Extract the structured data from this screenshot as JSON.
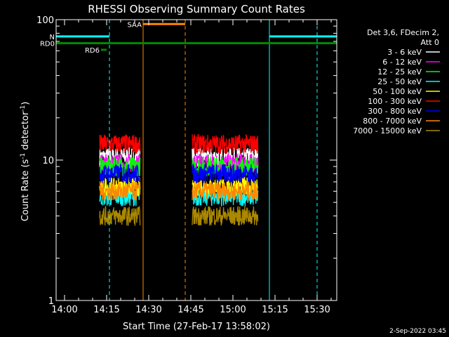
{
  "chart_data": {
    "type": "line",
    "title": "RHESSI Observing Summary Count Rates",
    "xlabel": "Start Time (27-Feb-17 13:58:02)",
    "ylabel_main": "Count Rate (s",
    "ylabel_sup1": "-1",
    "ylabel_mid": " detector",
    "ylabel_sup2": "-1",
    "ylabel_end": ")",
    "y_scale": "log",
    "ylim": [
      1,
      100
    ],
    "xlim_minutes": [
      -3,
      97
    ],
    "x_ticks": [
      {
        "m": 0,
        "label": "14:00"
      },
      {
        "m": 15,
        "label": "14:15"
      },
      {
        "m": 30,
        "label": "14:30"
      },
      {
        "m": 45,
        "label": "14:45"
      },
      {
        "m": 60,
        "label": "15:00"
      },
      {
        "m": 75,
        "label": "15:15"
      },
      {
        "m": 90,
        "label": "15:30"
      }
    ],
    "y_ticks": [
      {
        "v": 1,
        "label": "1"
      },
      {
        "v": 10,
        "label": "10"
      },
      {
        "v": 100,
        "label": "100"
      }
    ],
    "legend_header": [
      "Det 3,6, FDecim 2,",
      "Att 0"
    ],
    "series": [
      {
        "name": "3 - 6 keV",
        "color": "#ffffff",
        "level": 10.5
      },
      {
        "name": "6 - 12 keV",
        "color": "#ff00ff",
        "level": 9.5
      },
      {
        "name": "12 - 25 keV",
        "color": "#00ff00",
        "level": 9.0
      },
      {
        "name": "25 - 50 keV",
        "color": "#00ffff",
        "level": 5.5
      },
      {
        "name": "50 - 100 keV",
        "color": "#ffff00",
        "level": 6.5
      },
      {
        "name": "100 - 300 keV",
        "color": "#ff0000",
        "level": 13.0
      },
      {
        "name": "300 - 800 keV",
        "color": "#0000ff",
        "level": 8.0
      },
      {
        "name": "800 - 7000 keV",
        "color": "#ff8800",
        "level": 6.0
      },
      {
        "name": "7000 - 15000 keV",
        "color": "#aa8800",
        "level": 4.0
      }
    ],
    "data_segments": [
      {
        "start": 12.5,
        "end": 27
      },
      {
        "start": 45.5,
        "end": 69
      }
    ],
    "orbit_bars": [
      {
        "label": "N",
        "start": -3,
        "end": 16,
        "value": 76,
        "color": "#00ffff"
      },
      {
        "label": "",
        "start": 73,
        "end": 97,
        "value": 76,
        "color": "#00ffff"
      },
      {
        "label": "SAA",
        "start": 28,
        "end": 43,
        "value": 93,
        "color": "#ff8800"
      },
      {
        "label": "RD0",
        "start": -3,
        "end": 97,
        "value": 68,
        "color": "#008800"
      },
      {
        "label": "RD6",
        "start": 13,
        "end": 15,
        "value": 61,
        "color": "#008800"
      }
    ],
    "verticals": [
      {
        "m": -3,
        "color": "#00ffff",
        "dashed": false
      },
      {
        "m": 16,
        "color": "#00ffff",
        "dashed": true
      },
      {
        "m": 73,
        "color": "#00ffff",
        "dashed": false
      },
      {
        "m": 90,
        "color": "#00ffff",
        "dashed": true
      },
      {
        "m": 28,
        "color": "#ff8800",
        "dashed": false
      },
      {
        "m": 43,
        "color": "#ff8800",
        "dashed": true
      }
    ]
  },
  "footer_date": "2-Sep-2022 03:45"
}
